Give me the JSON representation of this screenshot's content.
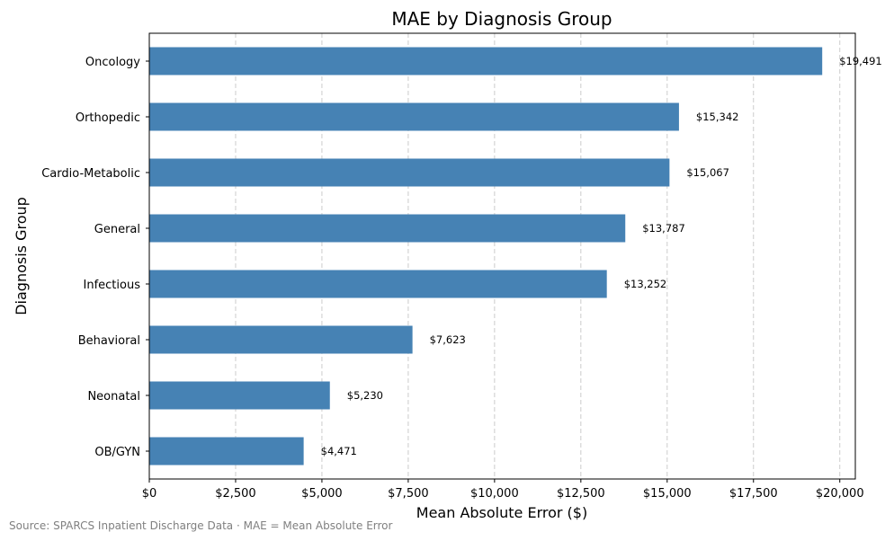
{
  "chart_data": {
    "type": "bar",
    "orientation": "horizontal",
    "title": "MAE by Diagnosis Group",
    "xlabel": "Mean Absolute Error ($)",
    "ylabel": "Diagnosis Group",
    "xlim": [
      0,
      20450
    ],
    "xticks": [
      0,
      2500,
      5000,
      7500,
      10000,
      12500,
      15000,
      17500,
      20000
    ],
    "xtick_labels": [
      "$0",
      "$2,500",
      "$5,000",
      "$7,500",
      "$10,000",
      "$12,500",
      "$15,000",
      "$17,500",
      "$20,000"
    ],
    "categories": [
      "Oncology",
      "Orthopedic",
      "Cardio-Metabolic",
      "General",
      "Infectious",
      "Behavioral",
      "Neonatal",
      "OB/GYN"
    ],
    "values": [
      19491,
      15342,
      15067,
      13787,
      13252,
      7623,
      5230,
      4471
    ],
    "data_labels": [
      "$19,491",
      "$15,342",
      "$15,067",
      "$13,787",
      "$13,252",
      "$7,623",
      "$5,230",
      "$4,471"
    ],
    "grid": "x-axis dashed",
    "bar_color": "#4682b4"
  },
  "footer": {
    "source": "Source: SPARCS Inpatient Discharge Data · MAE = Mean Absolute Error"
  }
}
